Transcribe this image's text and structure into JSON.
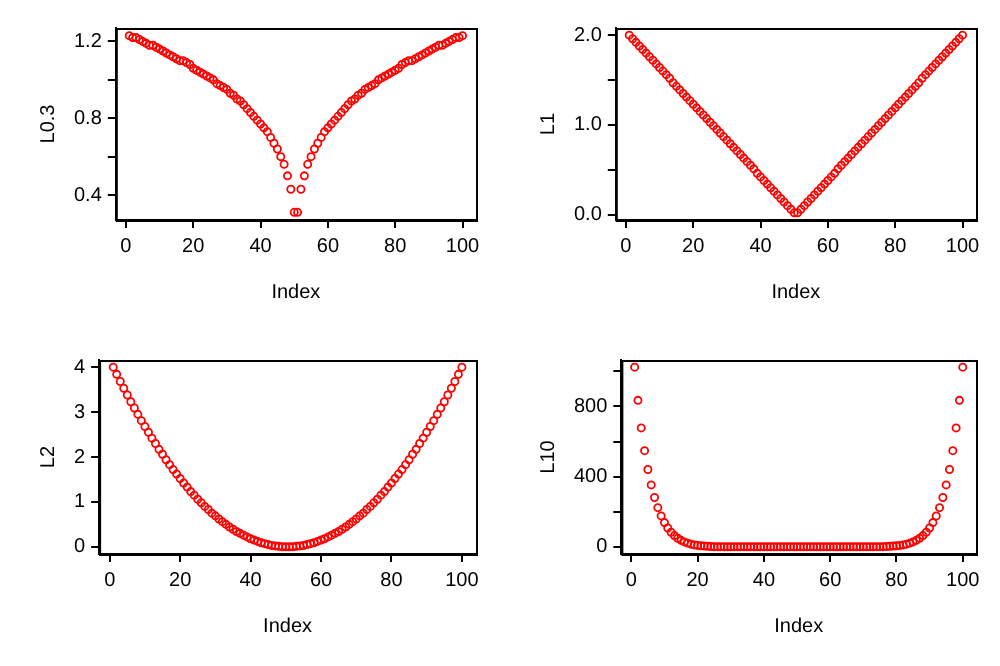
{
  "chart_data": [
    {
      "type": "scatter",
      "xlabel": "Index",
      "ylabel": "L0.3",
      "color": "#ff0000",
      "marker": "circle",
      "xlim": [
        -3,
        104
      ],
      "ylim": [
        0.27,
        1.27
      ],
      "xticks": [
        0,
        20,
        40,
        60,
        80,
        100
      ],
      "yticks": [
        0.4,
        {
          "value": 0.6,
          "label": null
        },
        0.8,
        {
          "value": 1.0,
          "label": null
        },
        1.2
      ],
      "x": [
        1,
        2,
        3,
        4,
        5,
        6,
        7,
        8,
        9,
        10,
        11,
        12,
        13,
        14,
        15,
        16,
        17,
        18,
        19,
        20,
        21,
        22,
        23,
        24,
        25,
        26,
        27,
        28,
        29,
        30,
        31,
        32,
        33,
        34,
        35,
        36,
        37,
        38,
        39,
        40,
        41,
        42,
        43,
        44,
        45,
        46,
        47,
        48,
        49,
        50,
        51,
        52,
        53,
        54,
        55,
        56,
        57,
        58,
        59,
        60,
        61,
        62,
        63,
        64,
        65,
        66,
        67,
        68,
        69,
        70,
        71,
        72,
        73,
        74,
        75,
        76,
        77,
        78,
        79,
        80,
        81,
        82,
        83,
        84,
        85,
        86,
        87,
        88,
        89,
        90,
        91,
        92,
        93,
        94,
        95,
        96,
        97,
        98,
        99,
        100
      ],
      "values": [
        1.23,
        1.22,
        1.22,
        1.21,
        1.2,
        1.19,
        1.18,
        1.18,
        1.17,
        1.16,
        1.15,
        1.14,
        1.13,
        1.12,
        1.11,
        1.1,
        1.1,
        1.09,
        1.08,
        1.06,
        1.05,
        1.04,
        1.03,
        1.02,
        1.01,
        1.0,
        0.98,
        0.97,
        0.96,
        0.95,
        0.93,
        0.92,
        0.9,
        0.89,
        0.87,
        0.85,
        0.83,
        0.81,
        0.79,
        0.77,
        0.75,
        0.73,
        0.7,
        0.67,
        0.64,
        0.6,
        0.56,
        0.5,
        0.43,
        0.31,
        0.31,
        0.43,
        0.5,
        0.56,
        0.6,
        0.64,
        0.67,
        0.7,
        0.73,
        0.75,
        0.77,
        0.79,
        0.81,
        0.83,
        0.85,
        0.87,
        0.89,
        0.9,
        0.92,
        0.93,
        0.95,
        0.96,
        0.97,
        0.98,
        1.0,
        1.01,
        1.02,
        1.03,
        1.04,
        1.05,
        1.06,
        1.08,
        1.09,
        1.1,
        1.1,
        1.11,
        1.12,
        1.13,
        1.14,
        1.15,
        1.16,
        1.17,
        1.18,
        1.18,
        1.19,
        1.2,
        1.21,
        1.22,
        1.22,
        1.23
      ]
    },
    {
      "type": "scatter",
      "xlabel": "Index",
      "ylabel": "L1",
      "color": "#ff0000",
      "marker": "circle",
      "xlim": [
        -3,
        104
      ],
      "ylim": [
        -0.06,
        2.08
      ],
      "xticks": [
        0,
        20,
        40,
        60,
        80,
        100
      ],
      "yticks": [
        {
          "value": 0,
          "label": "0.0"
        },
        {
          "value": 0.5,
          "label": null
        },
        {
          "value": 1,
          "label": "1.0"
        },
        {
          "value": 1.5,
          "label": null
        },
        {
          "value": 2,
          "label": "2.0"
        }
      ],
      "x": [
        1,
        2,
        3,
        4,
        5,
        6,
        7,
        8,
        9,
        10,
        11,
        12,
        13,
        14,
        15,
        16,
        17,
        18,
        19,
        20,
        21,
        22,
        23,
        24,
        25,
        26,
        27,
        28,
        29,
        30,
        31,
        32,
        33,
        34,
        35,
        36,
        37,
        38,
        39,
        40,
        41,
        42,
        43,
        44,
        45,
        46,
        47,
        48,
        49,
        50,
        51,
        52,
        53,
        54,
        55,
        56,
        57,
        58,
        59,
        60,
        61,
        62,
        63,
        64,
        65,
        66,
        67,
        68,
        69,
        70,
        71,
        72,
        73,
        74,
        75,
        76,
        77,
        78,
        79,
        80,
        81,
        82,
        83,
        84,
        85,
        86,
        87,
        88,
        89,
        90,
        91,
        92,
        93,
        94,
        95,
        96,
        97,
        98,
        99,
        100
      ],
      "values": [
        2.0,
        1.96,
        1.92,
        1.88,
        1.84,
        1.8,
        1.76,
        1.72,
        1.68,
        1.64,
        1.6,
        1.56,
        1.52,
        1.47,
        1.43,
        1.39,
        1.35,
        1.31,
        1.27,
        1.23,
        1.19,
        1.15,
        1.11,
        1.07,
        1.03,
        0.99,
        0.95,
        0.91,
        0.87,
        0.83,
        0.79,
        0.75,
        0.71,
        0.67,
        0.63,
        0.59,
        0.55,
        0.51,
        0.46,
        0.42,
        0.38,
        0.34,
        0.3,
        0.26,
        0.22,
        0.18,
        0.14,
        0.1,
        0.06,
        0.02,
        0.02,
        0.06,
        0.1,
        0.14,
        0.18,
        0.22,
        0.26,
        0.3,
        0.34,
        0.38,
        0.42,
        0.46,
        0.51,
        0.55,
        0.59,
        0.63,
        0.67,
        0.71,
        0.75,
        0.79,
        0.83,
        0.87,
        0.91,
        0.95,
        0.99,
        1.03,
        1.07,
        1.11,
        1.15,
        1.19,
        1.23,
        1.27,
        1.31,
        1.35,
        1.39,
        1.43,
        1.47,
        1.52,
        1.56,
        1.6,
        1.64,
        1.68,
        1.72,
        1.76,
        1.8,
        1.84,
        1.88,
        1.92,
        1.96,
        2.0
      ]
    },
    {
      "type": "scatter",
      "xlabel": "Index",
      "ylabel": "L2",
      "color": "#ff0000",
      "marker": "circle",
      "xlim": [
        -3,
        104
      ],
      "ylim": [
        -0.16,
        4.16
      ],
      "xticks": [
        0,
        20,
        40,
        60,
        80,
        100
      ],
      "yticks": [
        0,
        1,
        2,
        3,
        4
      ],
      "x": [
        1,
        2,
        3,
        4,
        5,
        6,
        7,
        8,
        9,
        10,
        11,
        12,
        13,
        14,
        15,
        16,
        17,
        18,
        19,
        20,
        21,
        22,
        23,
        24,
        25,
        26,
        27,
        28,
        29,
        30,
        31,
        32,
        33,
        34,
        35,
        36,
        37,
        38,
        39,
        40,
        41,
        42,
        43,
        44,
        45,
        46,
        47,
        48,
        49,
        50,
        51,
        52,
        53,
        54,
        55,
        56,
        57,
        58,
        59,
        60,
        61,
        62,
        63,
        64,
        65,
        66,
        67,
        68,
        69,
        70,
        71,
        72,
        73,
        74,
        75,
        76,
        77,
        78,
        79,
        80,
        81,
        82,
        83,
        84,
        85,
        86,
        87,
        88,
        89,
        90,
        91,
        92,
        93,
        94,
        95,
        96,
        97,
        98,
        99,
        100
      ],
      "values": [
        4.0,
        3.84,
        3.68,
        3.53,
        3.38,
        3.23,
        3.09,
        2.95,
        2.81,
        2.68,
        2.55,
        2.42,
        2.3,
        2.17,
        2.06,
        1.94,
        1.83,
        1.72,
        1.62,
        1.52,
        1.42,
        1.33,
        1.23,
        1.15,
        1.06,
        0.98,
        0.9,
        0.83,
        0.75,
        0.69,
        0.62,
        0.56,
        0.5,
        0.44,
        0.39,
        0.34,
        0.3,
        0.26,
        0.22,
        0.18,
        0.15,
        0.12,
        0.09,
        0.07,
        0.05,
        0.03,
        0.02,
        0.01,
        0.0,
        0.0,
        0.0,
        0.0,
        0.01,
        0.02,
        0.03,
        0.05,
        0.07,
        0.09,
        0.12,
        0.15,
        0.18,
        0.22,
        0.26,
        0.3,
        0.34,
        0.39,
        0.44,
        0.5,
        0.56,
        0.62,
        0.69,
        0.75,
        0.83,
        0.9,
        0.98,
        1.06,
        1.15,
        1.23,
        1.33,
        1.42,
        1.52,
        1.62,
        1.72,
        1.83,
        1.94,
        2.06,
        2.17,
        2.3,
        2.42,
        2.55,
        2.68,
        2.81,
        2.95,
        3.09,
        3.23,
        3.38,
        3.53,
        3.68,
        3.84,
        4.0
      ]
    },
    {
      "type": "scatter",
      "xlabel": "Index",
      "ylabel": "L10",
      "color": "#ff0000",
      "marker": "circle",
      "xlim": [
        -3,
        104
      ],
      "ylim": [
        -41,
        1065
      ],
      "xticks": [
        0,
        20,
        40,
        60,
        80,
        100
      ],
      "yticks": [
        0,
        {
          "value": 200,
          "label": null
        },
        400,
        {
          "value": 600,
          "label": null
        },
        800,
        {
          "value": 1000,
          "label": null
        }
      ],
      "x": [
        1,
        2,
        3,
        4,
        5,
        6,
        7,
        8,
        9,
        10,
        11,
        12,
        13,
        14,
        15,
        16,
        17,
        18,
        19,
        20,
        21,
        22,
        23,
        24,
        25,
        26,
        27,
        28,
        29,
        30,
        31,
        32,
        33,
        34,
        35,
        36,
        37,
        38,
        39,
        40,
        41,
        42,
        43,
        44,
        45,
        46,
        47,
        48,
        49,
        50,
        51,
        52,
        53,
        54,
        55,
        56,
        57,
        58,
        59,
        60,
        61,
        62,
        63,
        64,
        65,
        66,
        67,
        68,
        69,
        70,
        71,
        72,
        73,
        74,
        75,
        76,
        77,
        78,
        79,
        80,
        81,
        82,
        83,
        84,
        85,
        86,
        87,
        88,
        89,
        90,
        91,
        92,
        93,
        94,
        95,
        96,
        97,
        98,
        99,
        100
      ],
      "values": [
        1024,
        835,
        678,
        548,
        441,
        353,
        281,
        223,
        176,
        138,
        107,
        83,
        64,
        49,
        37,
        28,
        21,
        15,
        11,
        8,
        6,
        4,
        3,
        2,
        1,
        1,
        1,
        0,
        0,
        0,
        0,
        0,
        0,
        0,
        0,
        0,
        0,
        0,
        0,
        0,
        0,
        0,
        0,
        0,
        0,
        0,
        0,
        0,
        0,
        0,
        0,
        0,
        0,
        0,
        0,
        0,
        0,
        0,
        0,
        0,
        0,
        0,
        0,
        0,
        0,
        0,
        0,
        0,
        0,
        0,
        0,
        0,
        0,
        1,
        1,
        1,
        2,
        3,
        4,
        6,
        8,
        11,
        15,
        21,
        28,
        37,
        49,
        64,
        83,
        107,
        138,
        176,
        223,
        281,
        353,
        441,
        548,
        678,
        835,
        1024
      ]
    }
  ]
}
